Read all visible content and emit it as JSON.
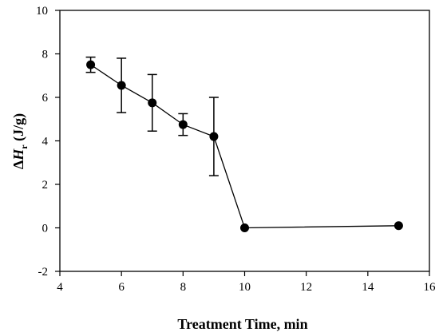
{
  "chart_data": {
    "type": "scatter",
    "title": "",
    "xlabel": "Treatment Time, min",
    "ylabel": {
      "prefix": "Δ",
      "var": "H",
      "sub": "r",
      "unit": " (J/g)"
    },
    "xlim": [
      4,
      16
    ],
    "ylim": [
      -2,
      10
    ],
    "xticks": [
      4,
      6,
      8,
      10,
      12,
      14,
      16
    ],
    "yticks": [
      -2,
      0,
      2,
      4,
      6,
      8,
      10
    ],
    "grid": false,
    "legend": "none",
    "line_color": "#000000",
    "marker_color": "#000000",
    "series": [
      {
        "points": [
          {
            "x": 5,
            "y": 7.5,
            "err": 0.35
          },
          {
            "x": 6,
            "y": 6.55,
            "err": 1.25
          },
          {
            "x": 7,
            "y": 5.75,
            "err": 1.3
          },
          {
            "x": 8,
            "y": 4.75,
            "err": 0.5
          },
          {
            "x": 9,
            "y": 4.2,
            "err": 1.8
          },
          {
            "x": 10,
            "y": 0.0,
            "err": 0
          },
          {
            "x": 15,
            "y": 0.1,
            "err": 0
          }
        ]
      }
    ]
  }
}
